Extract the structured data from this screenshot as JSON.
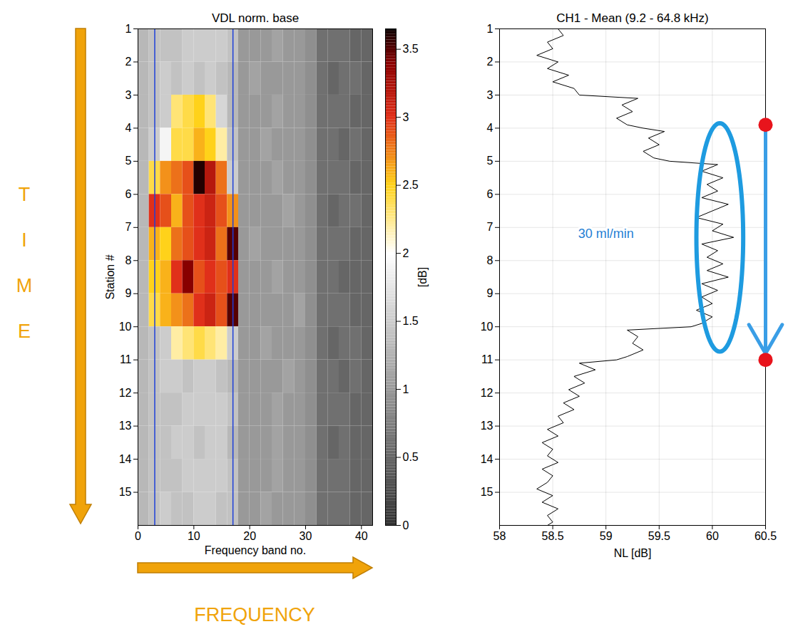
{
  "chart_data": [
    {
      "type": "heatmap",
      "title": "VDL norm. base",
      "x_label": "Frequency band no.",
      "y_label": "Station #",
      "xlim": [
        0,
        42
      ],
      "xticks": [
        0,
        10,
        20,
        30,
        40
      ],
      "ylim": [
        1,
        16
      ],
      "yticks": [
        1,
        2,
        3,
        4,
        5,
        6,
        7,
        8,
        9,
        10,
        11,
        12,
        13,
        14,
        15
      ],
      "x_edges": [
        0,
        2,
        4,
        6,
        8,
        10,
        12,
        14,
        16,
        18,
        20,
        22,
        24,
        26,
        28,
        30,
        32,
        34,
        36,
        38,
        40,
        42
      ],
      "y_edges": [
        1,
        2,
        3,
        4,
        5,
        6,
        7,
        8,
        9,
        10,
        11,
        12,
        13,
        14,
        15,
        16
      ],
      "cells": [
        [
          1.3,
          1.4,
          1.4,
          1.4,
          1.5,
          1.5,
          1.5,
          1.5,
          1.4,
          1.0,
          1.0,
          1.0,
          1.1,
          1.0,
          1.0,
          0.9,
          0.6,
          0.6,
          0.6,
          0.5,
          0.5
        ],
        [
          1.3,
          1.4,
          1.5,
          1.4,
          1.5,
          1.4,
          1.5,
          1.4,
          1.3,
          1.0,
          1.1,
          1.0,
          1.0,
          1.0,
          1.0,
          0.9,
          0.6,
          0.5,
          0.6,
          0.6,
          0.5
        ],
        [
          1.3,
          1.4,
          1.5,
          2.3,
          2.4,
          2.5,
          2.3,
          1.6,
          1.3,
          1.0,
          1.0,
          1.0,
          1.1,
          1.0,
          1.0,
          0.9,
          0.6,
          0.6,
          0.6,
          0.5,
          0.5
        ],
        [
          1.3,
          1.5,
          1.9,
          2.4,
          2.4,
          2.6,
          2.5,
          2.2,
          1.4,
          1.0,
          1.0,
          1.1,
          1.0,
          1.0,
          1.0,
          0.9,
          0.6,
          0.6,
          0.5,
          0.6,
          0.5
        ],
        [
          1.3,
          2.4,
          2.7,
          2.8,
          2.9,
          3.6,
          3.2,
          2.8,
          1.5,
          1.0,
          1.0,
          1.0,
          1.1,
          1.0,
          1.0,
          0.9,
          0.6,
          0.6,
          0.6,
          0.5,
          0.5
        ],
        [
          1.3,
          3.0,
          2.9,
          2.6,
          2.9,
          3.0,
          3.1,
          2.9,
          2.7,
          1.0,
          1.0,
          1.0,
          1.0,
          1.1,
          1.0,
          0.9,
          0.6,
          0.5,
          0.6,
          0.6,
          0.5
        ],
        [
          1.3,
          2.6,
          2.5,
          2.8,
          2.9,
          3.0,
          3.1,
          2.8,
          3.5,
          1.0,
          1.1,
          1.0,
          1.0,
          1.0,
          1.0,
          0.9,
          0.6,
          0.6,
          0.6,
          0.5,
          0.5
        ],
        [
          1.3,
          2.5,
          2.6,
          3.0,
          3.4,
          2.9,
          3.0,
          2.9,
          3.0,
          1.0,
          1.0,
          1.0,
          1.1,
          1.0,
          1.0,
          0.9,
          0.6,
          0.6,
          0.5,
          0.5,
          0.5
        ],
        [
          1.3,
          2.4,
          2.6,
          2.7,
          2.8,
          3.0,
          3.1,
          2.9,
          3.5,
          1.0,
          1.0,
          1.0,
          1.0,
          1.0,
          1.1,
          0.9,
          0.6,
          0.6,
          0.6,
          0.5,
          0.5
        ],
        [
          1.3,
          1.4,
          1.5,
          2.2,
          2.3,
          2.4,
          2.3,
          2.2,
          1.5,
          1.0,
          1.0,
          1.1,
          1.0,
          1.0,
          1.0,
          0.9,
          0.6,
          0.5,
          0.6,
          0.6,
          0.5
        ],
        [
          1.3,
          1.4,
          1.5,
          1.5,
          1.4,
          1.5,
          1.5,
          1.4,
          1.3,
          1.0,
          1.0,
          1.0,
          1.0,
          1.1,
          1.0,
          0.9,
          0.6,
          0.6,
          0.5,
          0.6,
          0.5
        ],
        [
          1.3,
          1.4,
          1.4,
          1.4,
          1.5,
          1.5,
          1.5,
          1.5,
          1.4,
          1.0,
          1.0,
          1.0,
          1.1,
          1.0,
          1.0,
          0.9,
          0.6,
          0.6,
          0.6,
          0.5,
          0.5
        ],
        [
          1.3,
          1.4,
          1.4,
          1.5,
          1.5,
          1.4,
          1.5,
          1.5,
          1.3,
          1.0,
          1.0,
          1.0,
          1.1,
          1.0,
          1.0,
          0.9,
          0.6,
          0.5,
          0.6,
          0.5,
          0.5
        ],
        [
          1.3,
          1.4,
          1.4,
          1.4,
          1.5,
          1.5,
          1.5,
          1.5,
          1.4,
          1.0,
          1.0,
          1.0,
          1.1,
          1.0,
          1.0,
          0.9,
          0.6,
          0.6,
          0.6,
          0.5,
          0.5
        ],
        [
          1.3,
          1.4,
          1.5,
          1.4,
          1.4,
          1.5,
          1.5,
          1.4,
          1.4,
          1.0,
          1.0,
          1.1,
          1.0,
          1.0,
          1.0,
          0.9,
          0.6,
          0.6,
          0.6,
          0.5,
          0.5
        ]
      ],
      "lines": [
        3,
        17
      ],
      "colorbar": {
        "lim": [
          0,
          3.65
        ],
        "ticks": [
          0,
          0.5,
          1,
          1.5,
          2,
          2.5,
          3,
          3.5
        ],
        "label": "[dB]"
      },
      "axis_arrows": {
        "x": "FREQUENCY",
        "y": "TIME",
        "color": "#f0a30a"
      }
    },
    {
      "type": "line",
      "title": "CH1 - Mean (9.2 - 64.8 kHz)",
      "x_label": "NL [dB]",
      "xlim": [
        58,
        60.5
      ],
      "xticks": [
        58,
        58.5,
        59,
        59.5,
        60,
        60.5
      ],
      "ylim": [
        1,
        16
      ],
      "yticks": [
        1,
        2,
        3,
        4,
        5,
        6,
        7,
        8,
        9,
        10,
        11,
        12,
        13,
        14,
        15
      ],
      "grid": true,
      "color": "#000000",
      "y": [
        1.0,
        1.2,
        1.4,
        1.6,
        1.8,
        2.0,
        2.2,
        2.4,
        2.6,
        2.8,
        3.0,
        3.1,
        3.3,
        3.5,
        3.7,
        3.9,
        4.0,
        4.1,
        4.3,
        4.5,
        4.7,
        4.9,
        5.0,
        5.1,
        5.3,
        5.5,
        5.7,
        5.9,
        6.1,
        6.3,
        6.5,
        6.7,
        6.9,
        7.1,
        7.3,
        7.5,
        7.7,
        7.9,
        8.1,
        8.3,
        8.5,
        8.7,
        8.9,
        9.1,
        9.3,
        9.5,
        9.7,
        9.9,
        10.0,
        10.1,
        10.3,
        10.5,
        10.7,
        10.9,
        11.0,
        11.1,
        11.3,
        11.5,
        11.7,
        11.9,
        12.1,
        12.3,
        12.5,
        12.7,
        12.9,
        13.1,
        13.3,
        13.5,
        13.7,
        13.9,
        14.1,
        14.3,
        14.5,
        14.7,
        14.9,
        15.1,
        15.3,
        15.5,
        15.7,
        15.9,
        16.0
      ],
      "x": [
        58.55,
        58.6,
        58.45,
        58.5,
        58.35,
        58.55,
        58.45,
        58.65,
        58.5,
        58.7,
        58.75,
        59.3,
        59.15,
        59.25,
        59.1,
        59.2,
        59.35,
        59.55,
        59.4,
        59.5,
        59.35,
        59.45,
        59.6,
        60.05,
        59.9,
        60.1,
        59.95,
        60.05,
        59.9,
        60.15,
        60.0,
        59.85,
        60.1,
        60.0,
        60.2,
        59.9,
        60.05,
        59.95,
        60.1,
        59.95,
        60.15,
        59.9,
        60.05,
        59.9,
        60.0,
        59.85,
        60.0,
        59.9,
        59.8,
        59.2,
        59.3,
        59.25,
        59.35,
        59.2,
        59.1,
        58.75,
        58.9,
        58.7,
        58.8,
        58.65,
        58.75,
        58.6,
        58.7,
        58.55,
        58.6,
        58.45,
        58.55,
        58.4,
        58.5,
        58.45,
        58.55,
        58.4,
        58.5,
        58.45,
        58.35,
        58.5,
        58.4,
        58.55,
        58.45,
        58.5,
        58.45
      ],
      "annotations": [
        {
          "text": "30 ml/min",
          "x": 59.0,
          "y": 7.2,
          "color": "#1f7fd4"
        }
      ],
      "ellipse": {
        "x": 60.07,
        "y": 7.3,
        "rx": 0.22,
        "ry": 3.45,
        "color": "#1e9be0"
      },
      "arrow": {
        "x": 60.5,
        "y1": 3.9,
        "y2": 11.0,
        "color": "#3a9ee6",
        "marker_color": "#e8141c"
      }
    }
  ]
}
